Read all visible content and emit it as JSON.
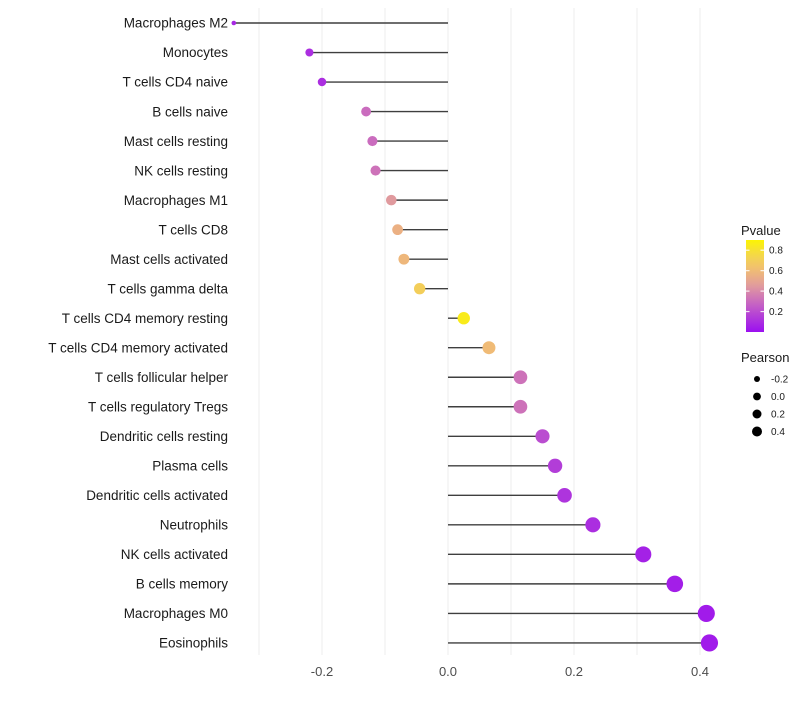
{
  "chart_data": {
    "type": "lollipop",
    "title": "",
    "xlabel": "",
    "ylabel": "",
    "xlim": [
      -0.38,
      0.46
    ],
    "x_ticks": [
      -0.2,
      0.0,
      0.2,
      0.4
    ],
    "x_tick_labels": [
      "-0.2",
      "0.0",
      "0.2",
      "0.4"
    ],
    "grid_x": [
      -0.3,
      -0.2,
      -0.1,
      0.0,
      0.1,
      0.2,
      0.3,
      0.4
    ],
    "grid_on": true,
    "points": [
      {
        "label": "Macrophages M2",
        "pearson": -0.34,
        "pvalue": 0.08
      },
      {
        "label": "Monocytes",
        "pearson": -0.22,
        "pvalue": 0.1
      },
      {
        "label": "T cells CD4 naive",
        "pearson": -0.2,
        "pvalue": 0.1
      },
      {
        "label": "B cells naive",
        "pearson": -0.13,
        "pvalue": 0.3
      },
      {
        "label": "Mast cells resting",
        "pearson": -0.12,
        "pvalue": 0.3
      },
      {
        "label": "NK cells resting",
        "pearson": -0.115,
        "pvalue": 0.32
      },
      {
        "label": "Macrophages M1",
        "pearson": -0.09,
        "pvalue": 0.45
      },
      {
        "label": "T cells CD8",
        "pearson": -0.08,
        "pvalue": 0.55
      },
      {
        "label": "Mast cells activated",
        "pearson": -0.07,
        "pvalue": 0.58
      },
      {
        "label": "T cells gamma delta",
        "pearson": -0.045,
        "pvalue": 0.7
      },
      {
        "label": "T cells CD4 memory resting",
        "pearson": 0.025,
        "pvalue": 0.85
      },
      {
        "label": "T cells CD4 memory activated",
        "pearson": 0.065,
        "pvalue": 0.6
      },
      {
        "label": "T cells follicular helper",
        "pearson": 0.115,
        "pvalue": 0.32
      },
      {
        "label": "T cells regulatory  Tregs",
        "pearson": 0.115,
        "pvalue": 0.32
      },
      {
        "label": "Dendritic cells resting",
        "pearson": 0.15,
        "pvalue": 0.2
      },
      {
        "label": "Plasma cells",
        "pearson": 0.17,
        "pvalue": 0.15
      },
      {
        "label": "Dendritic cells activated",
        "pearson": 0.185,
        "pvalue": 0.12
      },
      {
        "label": "Neutrophils",
        "pearson": 0.23,
        "pvalue": 0.1
      },
      {
        "label": "NK cells activated",
        "pearson": 0.31,
        "pvalue": 0.06
      },
      {
        "label": "B cells memory",
        "pearson": 0.36,
        "pvalue": 0.05
      },
      {
        "label": "Macrophages M0",
        "pearson": 0.41,
        "pvalue": 0.04
      },
      {
        "label": "Eosinophils",
        "pearson": 0.415,
        "pvalue": 0.04
      }
    ],
    "legend": {
      "color": {
        "title": "Pvalue",
        "ticks": [
          0.8,
          0.6,
          0.4,
          0.2
        ],
        "tick_labels": [
          "0.8",
          "0.6",
          "0.4",
          "0.2"
        ],
        "domain": [
          0.0,
          0.9
        ],
        "gradient_stops": [
          [
            0.0,
            "#9B0FF0"
          ],
          [
            0.25,
            "#C25CC8"
          ],
          [
            0.45,
            "#E09A9E"
          ],
          [
            0.6,
            "#F0BB76"
          ],
          [
            0.75,
            "#F4D84C"
          ],
          [
            0.9,
            "#FCF403"
          ]
        ]
      },
      "size": {
        "title": "Pearson",
        "ticks": [
          -0.2,
          0.0,
          0.2,
          0.4
        ],
        "tick_labels": [
          "-0.2",
          "0.0",
          "0.2",
          "0.4"
        ],
        "dot_color": "#000000"
      },
      "position": "right"
    },
    "styles": {
      "background": "#FFFFFF",
      "stem_color": "#3F3F3F",
      "grid_color": "#ECECEC",
      "label_color": "#1A1A1A",
      "tick_label_color": "#4D4D4D"
    }
  }
}
